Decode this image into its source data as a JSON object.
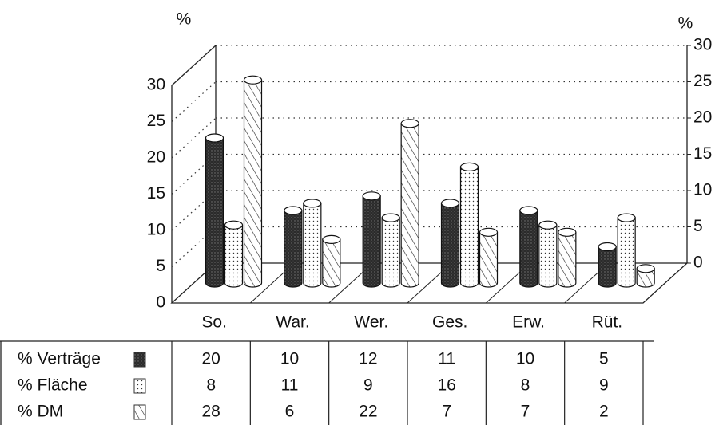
{
  "chart_data": {
    "type": "bar3d",
    "y_label": "%",
    "y2_label": "%",
    "categories": [
      "So.",
      "War.",
      "Wer.",
      "Ges.",
      "Erw.",
      "Rüt."
    ],
    "series": [
      {
        "name": "% Verträge",
        "color": "#2b2b2b",
        "pattern": "stipple",
        "values": [
          20,
          10,
          12,
          11,
          10,
          5
        ]
      },
      {
        "name": "% Fläche",
        "color": "#ffffff",
        "pattern": "dots",
        "values": [
          8,
          11,
          9,
          16,
          8,
          9
        ]
      },
      {
        "name": "% DM",
        "color": "#ffffff",
        "pattern": "hatch",
        "values": [
          28,
          6,
          22,
          7,
          7,
          2
        ]
      }
    ],
    "ylim": [
      0,
      30
    ],
    "yticks": [
      0,
      5,
      10,
      15,
      20,
      25,
      30
    ],
    "y2lim": [
      0,
      30
    ],
    "y2ticks": [
      0,
      5,
      10,
      15,
      20,
      25,
      30
    ],
    "grid": true
  }
}
